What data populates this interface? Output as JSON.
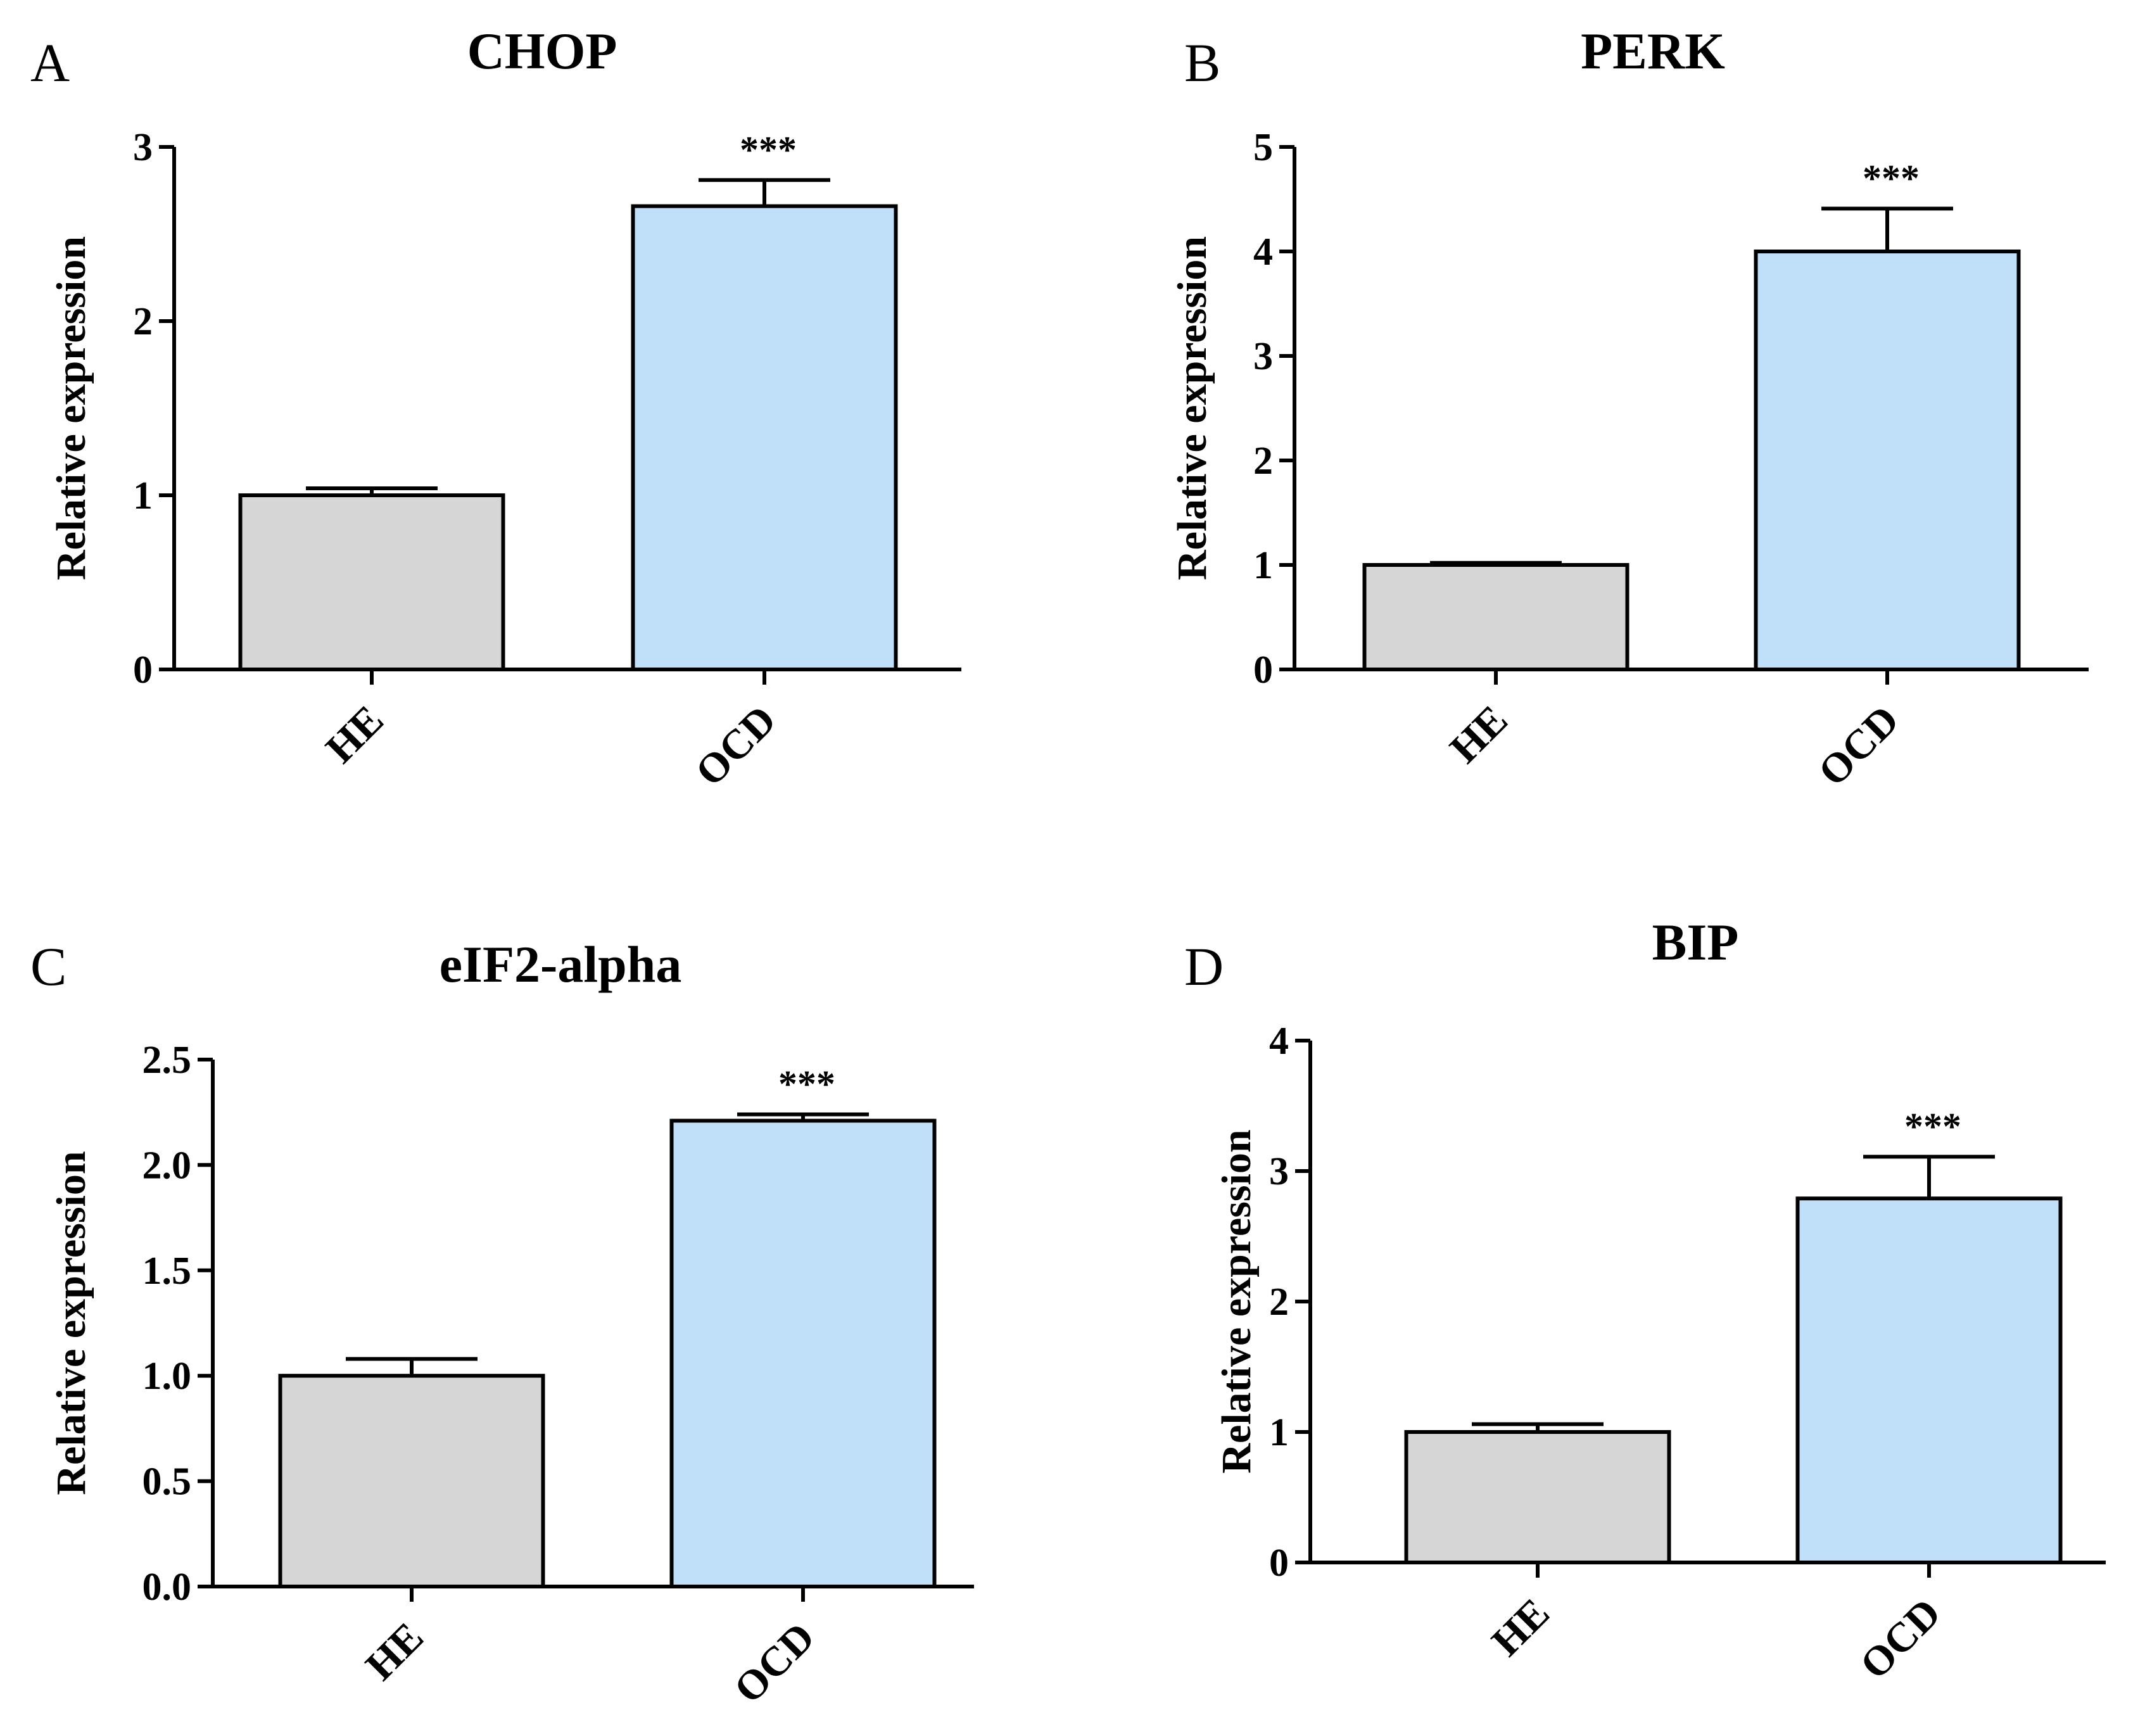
{
  "figure": {
    "bar_colors": {
      "HE": "#d6d6d6",
      "OCD": "#c0dff8"
    }
  },
  "chart_data": [
    {
      "panel": "A",
      "type": "bar",
      "title": "CHOP",
      "ylabel": "Relative expression",
      "xlabel": "",
      "categories": [
        "HE",
        "OCD"
      ],
      "values": [
        1.0,
        2.66
      ],
      "errors": [
        0.04,
        0.15
      ],
      "significance": [
        "",
        "***"
      ],
      "ylim": [
        0,
        3
      ],
      "yticks": [
        0,
        1,
        2,
        3
      ],
      "ytick_labels": [
        "0",
        "1",
        "2",
        "3"
      ]
    },
    {
      "panel": "B",
      "type": "bar",
      "title": "PERK",
      "ylabel": "Relative expression",
      "xlabel": "",
      "categories": [
        "HE",
        "OCD"
      ],
      "values": [
        1.0,
        4.0
      ],
      "errors": [
        0.02,
        0.41
      ],
      "significance": [
        "",
        "***"
      ],
      "ylim": [
        0,
        5
      ],
      "yticks": [
        0,
        1,
        2,
        3,
        4,
        5
      ],
      "ytick_labels": [
        "0",
        "1",
        "2",
        "3",
        "4",
        "5"
      ]
    },
    {
      "panel": "C",
      "type": "bar",
      "title": "eIF2-alpha",
      "ylabel": "Relative expression",
      "xlabel": "",
      "categories": [
        "HE",
        "OCD"
      ],
      "values": [
        1.0,
        2.21
      ],
      "errors": [
        0.08,
        0.03
      ],
      "significance": [
        "",
        "***"
      ],
      "ylim": [
        0,
        2.5
      ],
      "yticks": [
        0,
        0.5,
        1.0,
        1.5,
        2.0,
        2.5
      ],
      "ytick_labels": [
        "0.0",
        "0.5",
        "1.0",
        "1.5",
        "2.0",
        "2.5"
      ]
    },
    {
      "panel": "D",
      "type": "bar",
      "title": "BIP",
      "ylabel": "Relative expression",
      "xlabel": "",
      "categories": [
        "HE",
        "OCD"
      ],
      "values": [
        1.0,
        2.79
      ],
      "errors": [
        0.06,
        0.32
      ],
      "significance": [
        "",
        "***"
      ],
      "ylim": [
        0,
        4
      ],
      "yticks": [
        0,
        1,
        2,
        3,
        4
      ],
      "ytick_labels": [
        "0",
        "1",
        "2",
        "3",
        "4"
      ]
    }
  ]
}
